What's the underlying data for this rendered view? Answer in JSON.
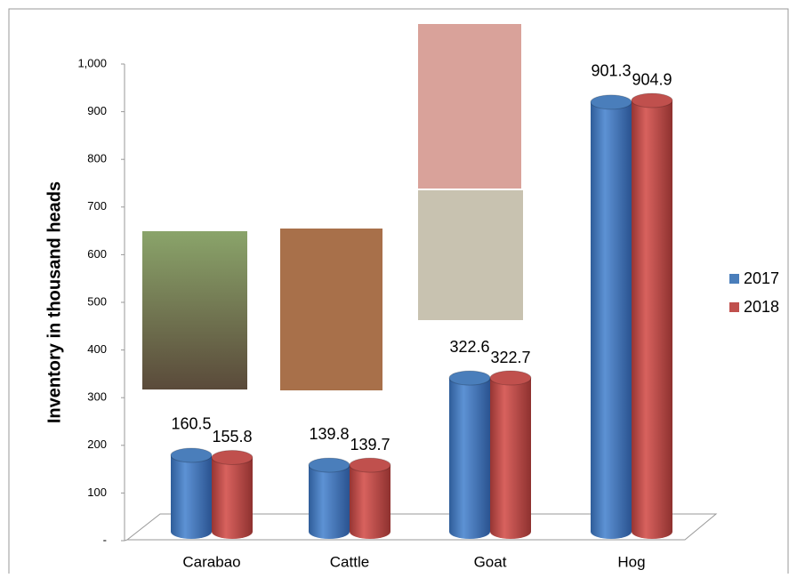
{
  "chart_data": {
    "type": "bar",
    "y_label": "Inventory in thousand  heads",
    "categories": [
      "Carabao",
      "Cattle",
      "Goat",
      "Hog"
    ],
    "series": [
      {
        "name": "2017",
        "color": "#4a7ebb",
        "values": [
          160.5,
          139.8,
          322.6,
          901.3
        ]
      },
      {
        "name": "2018",
        "color": "#c0504d",
        "values": [
          155.8,
          139.7,
          322.7,
          904.9
        ]
      }
    ],
    "ylim": [
      0,
      1000
    ],
    "yticks": [
      {
        "value": 0,
        "label": "-"
      },
      100,
      200,
      300,
      400,
      500,
      600,
      700,
      800,
      900,
      {
        "value": 1000,
        "label": "1,000"
      }
    ],
    "legend": "right"
  }
}
